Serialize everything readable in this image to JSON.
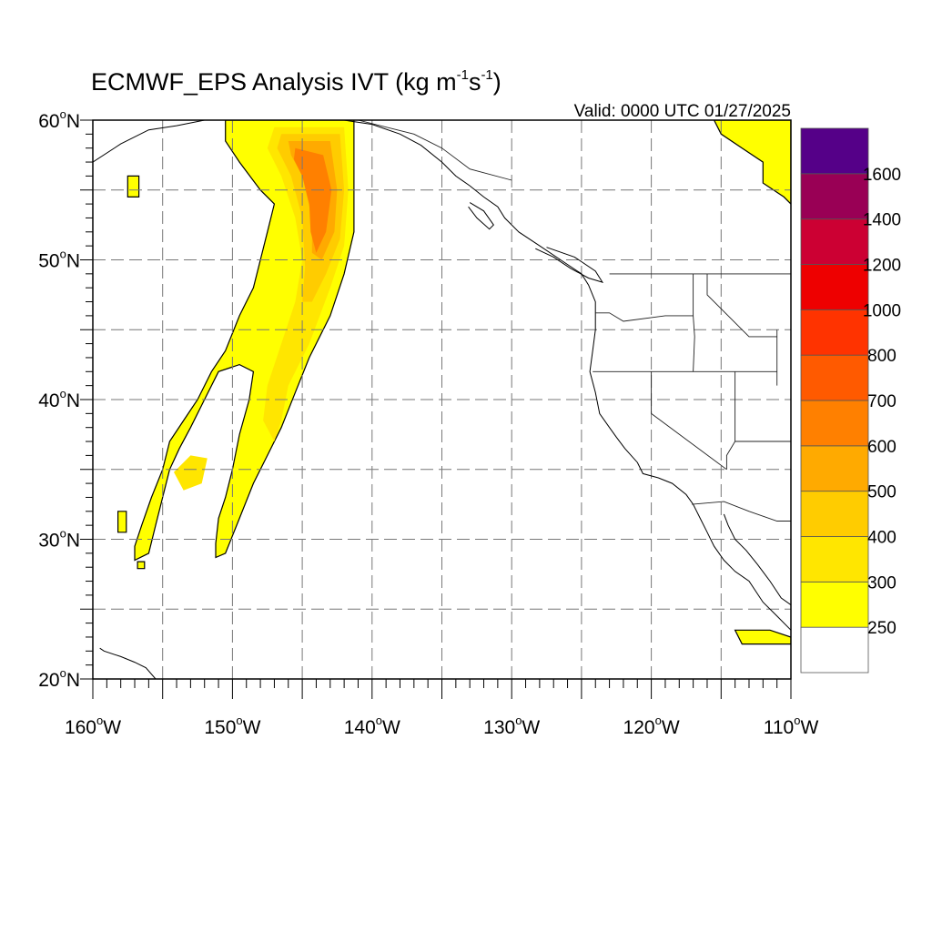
{
  "title": {
    "main": "ECMWF_EPS Analysis IVT (kg m",
    "exp1": "-1",
    "mid": "s",
    "exp2": "-1",
    "close": ")"
  },
  "valid_label": "Valid: 0000 UTC 01/27/2025",
  "axes": {
    "x_ticks": [
      {
        "value": -160,
        "label": "160"
      },
      {
        "value": -150,
        "label": "150"
      },
      {
        "value": -140,
        "label": "140"
      },
      {
        "value": -130,
        "label": "130"
      },
      {
        "value": -120,
        "label": "120"
      },
      {
        "value": -110,
        "label": "110"
      }
    ],
    "x_suffix": "W",
    "y_ticks": [
      {
        "value": 20,
        "label": "20"
      },
      {
        "value": 30,
        "label": "30"
      },
      {
        "value": 40,
        "label": "40"
      },
      {
        "value": 50,
        "label": "50"
      },
      {
        "value": 60,
        "label": "60"
      }
    ],
    "y_suffix": "N",
    "degree": "o",
    "lon_range": [
      -160,
      -110
    ],
    "lat_range": [
      20,
      60
    ],
    "grid": true,
    "grid_style": "dashed"
  },
  "colorbar": {
    "levels": [
      {
        "label": "",
        "color": "#ffffff"
      },
      {
        "label": "250",
        "color": "#ffff00"
      },
      {
        "label": "300",
        "color": "#ffe600"
      },
      {
        "label": "400",
        "color": "#ffcc00"
      },
      {
        "label": "500",
        "color": "#ffaa00"
      },
      {
        "label": "600",
        "color": "#ff8000"
      },
      {
        "label": "700",
        "color": "#ff5a00"
      },
      {
        "label": "800",
        "color": "#ff3300"
      },
      {
        "label": "1000",
        "color": "#ee0000"
      },
      {
        "label": "1200",
        "color": "#cc0033"
      },
      {
        "label": "1400",
        "color": "#990055"
      },
      {
        "label": "1600",
        "color": "#550088"
      }
    ]
  },
  "ivt_regions": [
    {
      "level": 250,
      "color": "#ffff00",
      "name": "atmospheric-river-main",
      "points": [
        [
          -150.5,
          60
        ],
        [
          -141.3,
          60
        ],
        [
          -141.3,
          55
        ],
        [
          -141.3,
          52
        ],
        [
          -142,
          49
        ],
        [
          -143,
          46
        ],
        [
          -144.5,
          43
        ],
        [
          -145.5,
          40.5
        ],
        [
          -146.5,
          38
        ],
        [
          -147.5,
          36
        ],
        [
          -148.5,
          34
        ],
        [
          -149.5,
          31.5
        ],
        [
          -150.5,
          29
        ],
        [
          -151.2,
          28.7
        ],
        [
          -151.2,
          29.7
        ],
        [
          -151,
          31.5
        ],
        [
          -150.5,
          33
        ],
        [
          -150,
          35
        ],
        [
          -149.5,
          37.5
        ],
        [
          -148.8,
          40
        ],
        [
          -148.5,
          42
        ],
        [
          -149.5,
          42.5
        ],
        [
          -151,
          42
        ],
        [
          -152,
          40
        ],
        [
          -153,
          38
        ],
        [
          -153.8,
          36.5
        ],
        [
          -154.5,
          35
        ],
        [
          -155,
          33
        ],
        [
          -155.5,
          31
        ],
        [
          -156,
          29
        ],
        [
          -157,
          28.5
        ],
        [
          -157,
          29.5
        ],
        [
          -156.5,
          31
        ],
        [
          -155.8,
          33
        ],
        [
          -155,
          35
        ],
        [
          -154.5,
          37
        ],
        [
          -153.5,
          38.5
        ],
        [
          -152.5,
          40
        ],
        [
          -151.5,
          42
        ],
        [
          -150.5,
          43.5
        ],
        [
          -149.5,
          46
        ],
        [
          -148.5,
          48
        ],
        [
          -148,
          50
        ],
        [
          -147.5,
          52
        ],
        [
          -147,
          54
        ],
        [
          -148,
          55
        ],
        [
          -149.5,
          57
        ],
        [
          -150.5,
          58.5
        ]
      ]
    },
    {
      "level": 300,
      "color": "#ffe600",
      "name": "ivt-300-core",
      "points": [
        [
          -147,
          59.5
        ],
        [
          -142,
          59.5
        ],
        [
          -141.7,
          55
        ],
        [
          -142,
          51
        ],
        [
          -143,
          48
        ],
        [
          -144.5,
          44
        ],
        [
          -146,
          41
        ],
        [
          -146.5,
          38.5
        ],
        [
          -147,
          37
        ],
        [
          -147.8,
          38.5
        ],
        [
          -147.5,
          41
        ],
        [
          -146.5,
          44
        ],
        [
          -145.5,
          47
        ],
        [
          -145,
          50
        ],
        [
          -145.5,
          53
        ],
        [
          -146.5,
          56
        ],
        [
          -147.5,
          58
        ]
      ]
    },
    {
      "level": 300,
      "color": "#ffe600",
      "name": "ivt-300-sw-branch",
      "points": [
        [
          -153,
          36
        ],
        [
          -151.8,
          35.8
        ],
        [
          -152.2,
          34
        ],
        [
          -153.5,
          33.5
        ],
        [
          -154.2,
          34.8
        ]
      ]
    },
    {
      "level": 400,
      "color": "#ffcc00",
      "name": "ivt-400-core",
      "points": [
        [
          -146.5,
          59
        ],
        [
          -142.3,
          59
        ],
        [
          -142,
          55
        ],
        [
          -142.3,
          51.5
        ],
        [
          -143.3,
          49
        ],
        [
          -144.3,
          47
        ],
        [
          -145,
          47
        ],
        [
          -144.8,
          49.5
        ],
        [
          -145,
          53
        ],
        [
          -145.8,
          56
        ],
        [
          -146.8,
          58
        ]
      ]
    },
    {
      "level": 500,
      "color": "#ffaa00",
      "name": "ivt-500-core",
      "points": [
        [
          -146,
          58.5
        ],
        [
          -143,
          58.5
        ],
        [
          -142.5,
          55
        ],
        [
          -142.7,
          52
        ],
        [
          -143.6,
          50
        ],
        [
          -144.3,
          50.5
        ],
        [
          -144.3,
          53
        ],
        [
          -145,
          56
        ],
        [
          -145.8,
          57.5
        ]
      ]
    },
    {
      "level": 600,
      "color": "#ff8000",
      "name": "ivt-600-core",
      "points": [
        [
          -145.5,
          58
        ],
        [
          -143.5,
          57.5
        ],
        [
          -142.9,
          55
        ],
        [
          -143.3,
          52
        ],
        [
          -144,
          50.5
        ],
        [
          -144.4,
          52
        ],
        [
          -144.5,
          54
        ],
        [
          -145,
          56
        ],
        [
          -145.6,
          57.2
        ]
      ]
    },
    {
      "level": 250,
      "color": "#ffff00",
      "name": "ivt-ne-corner",
      "points": [
        [
          -115.5,
          60
        ],
        [
          -110,
          60
        ],
        [
          -110,
          54
        ],
        [
          -110.5,
          54.5
        ],
        [
          -112,
          55.5
        ],
        [
          -112,
          57
        ],
        [
          -113.5,
          58
        ],
        [
          -115,
          59
        ]
      ]
    },
    {
      "level": 250,
      "color": "#ffff00",
      "name": "ivt-se-corner",
      "points": [
        [
          -114,
          23.5
        ],
        [
          -111.5,
          23.5
        ],
        [
          -110,
          23
        ],
        [
          -110,
          22.5
        ],
        [
          -113.5,
          22.5
        ]
      ]
    },
    {
      "level": 250,
      "color": "#ffff00",
      "name": "ivt-isolated-1",
      "points": [
        [
          -157.5,
          56
        ],
        [
          -156.7,
          56
        ],
        [
          -156.7,
          54.5
        ],
        [
          -157.5,
          54.5
        ]
      ]
    },
    {
      "level": 250,
      "color": "#ffff00",
      "name": "ivt-isolated-2",
      "points": [
        [
          -158.2,
          32
        ],
        [
          -157.6,
          32
        ],
        [
          -157.6,
          30.5
        ],
        [
          -158.2,
          30.5
        ]
      ]
    },
    {
      "level": 250,
      "color": "#ffff00",
      "name": "ivt-isolated-3",
      "points": [
        [
          -156.8,
          28.4
        ],
        [
          -156.3,
          28.4
        ],
        [
          -156.3,
          27.9
        ],
        [
          -156.8,
          27.9
        ]
      ]
    }
  ],
  "coastlines": [
    {
      "name": "alaska-coast",
      "points": [
        [
          -160,
          57
        ],
        [
          -158,
          58.3
        ],
        [
          -156,
          59.3
        ],
        [
          -154,
          59.6
        ],
        [
          -152,
          60
        ],
        [
          -147,
          60
        ],
        [
          -145,
          60.1
        ],
        [
          -142,
          60
        ],
        [
          -140,
          59.7
        ],
        [
          -138,
          59
        ],
        [
          -136.5,
          58.2
        ],
        [
          -135,
          57
        ],
        [
          -134,
          56
        ],
        [
          -133,
          55.3
        ],
        [
          -132,
          54.5
        ],
        [
          -131,
          53.8
        ],
        [
          -130.5,
          53
        ],
        [
          -129.5,
          52
        ],
        [
          -128,
          51
        ],
        [
          -126.5,
          50
        ],
        [
          -125,
          49
        ],
        [
          -124.5,
          48.2
        ],
        [
          -124,
          47
        ],
        [
          -124,
          45
        ],
        [
          -124.2,
          43.5
        ],
        [
          -124.4,
          42
        ],
        [
          -124,
          40.5
        ],
        [
          -123.7,
          39
        ],
        [
          -123,
          38
        ],
        [
          -122.5,
          37.3
        ],
        [
          -121.9,
          36.5
        ],
        [
          -121,
          35.5
        ],
        [
          -120.6,
          34.7
        ],
        [
          -119.5,
          34.4
        ],
        [
          -118.5,
          34
        ],
        [
          -117.5,
          33.2
        ],
        [
          -117,
          32.5
        ],
        [
          -116.5,
          31.5
        ],
        [
          -116,
          30.5
        ],
        [
          -115.5,
          29.5
        ],
        [
          -114.8,
          28.5
        ],
        [
          -114,
          27.7
        ],
        [
          -113,
          27
        ],
        [
          -112,
          25.5
        ],
        [
          -111,
          24.5
        ],
        [
          -110,
          23.5
        ]
      ]
    },
    {
      "name": "gulf-of-california",
      "points": [
        [
          -114.8,
          31.8
        ],
        [
          -114.5,
          31
        ],
        [
          -114,
          30
        ],
        [
          -113.2,
          29.2
        ],
        [
          -112.4,
          28.2
        ],
        [
          -111.5,
          27
        ],
        [
          -110.7,
          25.8
        ],
        [
          -110,
          25.3
        ]
      ]
    },
    {
      "name": "hawaii-coast",
      "points": [
        [
          -159.5,
          22.2
        ],
        [
          -159.2,
          22
        ],
        [
          -158,
          21.6
        ],
        [
          -157,
          21.2
        ],
        [
          -156.2,
          20.8
        ],
        [
          -155.5,
          20
        ],
        [
          -155,
          19.7
        ]
      ]
    },
    {
      "name": "vancouver-island",
      "points": [
        [
          -128.3,
          50.8
        ],
        [
          -127,
          50.2
        ],
        [
          -125.8,
          49.4
        ],
        [
          -124.5,
          48.7
        ],
        [
          -123.5,
          48.4
        ],
        [
          -124,
          49.2
        ],
        [
          -125.5,
          50.2
        ],
        [
          -127.5,
          50.9
        ]
      ]
    },
    {
      "name": "haida-gwaii",
      "points": [
        [
          -133,
          54.1
        ],
        [
          -132,
          53.5
        ],
        [
          -131.3,
          52.5
        ],
        [
          -131.6,
          52.2
        ],
        [
          -132.5,
          53
        ],
        [
          -133.1,
          53.8
        ]
      ]
    }
  ],
  "borders": [
    {
      "name": "us-canada-border",
      "points": [
        [
          -123,
          49
        ],
        [
          -110,
          49
        ]
      ]
    },
    {
      "name": "alaska-canada-border",
      "points": [
        [
          -141,
          60
        ],
        [
          -137,
          59
        ],
        [
          -135,
          58
        ],
        [
          -133,
          56.5
        ],
        [
          -130,
          55.7
        ]
      ]
    },
    {
      "name": "washington-oregon",
      "points": [
        [
          -124,
          46.2
        ],
        [
          -123,
          46.2
        ],
        [
          -122,
          45.6
        ],
        [
          -119,
          46
        ],
        [
          -117,
          46
        ]
      ]
    },
    {
      "name": "oregon-california",
      "points": [
        [
          -124.2,
          42
        ],
        [
          -120,
          42
        ],
        [
          -117,
          42
        ],
        [
          -111,
          42
        ]
      ]
    },
    {
      "name": "california-nevada",
      "points": [
        [
          -120,
          42
        ],
        [
          -120,
          39
        ],
        [
          -114.6,
          35
        ]
      ]
    },
    {
      "name": "idaho-west",
      "points": [
        [
          -117,
          49
        ],
        [
          -117,
          46
        ],
        [
          -116.9,
          44.5
        ],
        [
          -117,
          42
        ]
      ]
    },
    {
      "name": "nevada-utah",
      "points": [
        [
          -114,
          42
        ],
        [
          -114,
          37
        ]
      ]
    },
    {
      "name": "arizona-nevada",
      "points": [
        [
          -114,
          37
        ],
        [
          -114.6,
          36
        ],
        [
          -114.6,
          35
        ]
      ]
    },
    {
      "name": "arizona-utah",
      "points": [
        [
          -114,
          37
        ],
        [
          -110,
          37
        ]
      ]
    },
    {
      "name": "us-mexico-border",
      "points": [
        [
          -117.1,
          32.5
        ],
        [
          -114.8,
          32.7
        ],
        [
          -113,
          32
        ],
        [
          -111,
          31.3
        ],
        [
          -110,
          31.3
        ]
      ]
    },
    {
      "name": "montana-idaho",
      "points": [
        [
          -116,
          49
        ],
        [
          -116,
          47.5
        ],
        [
          -114.5,
          46
        ],
        [
          -113,
          44.5
        ],
        [
          -111,
          44.5
        ]
      ]
    },
    {
      "name": "wyoming-idaho",
      "points": [
        [
          -111,
          45
        ],
        [
          -111,
          41
        ]
      ]
    }
  ]
}
